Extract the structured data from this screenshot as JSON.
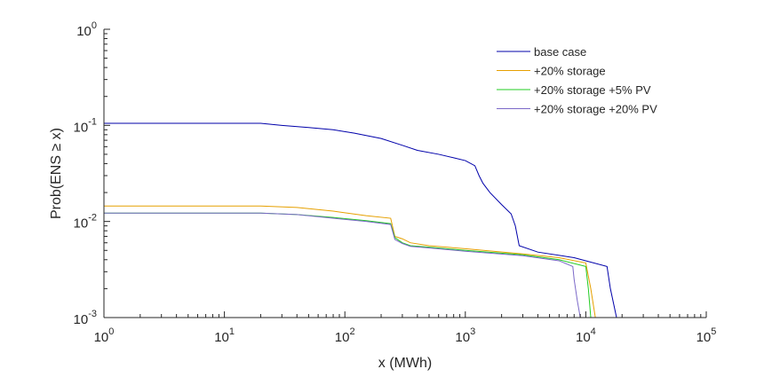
{
  "chart_data": {
    "type": "line",
    "title": "",
    "xlabel": "x (MWh)",
    "ylabel": "Prob(ENS ≥ x)",
    "x_scale": "log",
    "y_scale": "log",
    "xlim": [
      1,
      100000
    ],
    "ylim": [
      0.001,
      1
    ],
    "x_ticks": [
      {
        "value": 1,
        "base": "10",
        "exp": "0"
      },
      {
        "value": 10,
        "base": "10",
        "exp": "1"
      },
      {
        "value": 100,
        "base": "10",
        "exp": "2"
      },
      {
        "value": 1000,
        "base": "10",
        "exp": "3"
      },
      {
        "value": 10000,
        "base": "10",
        "exp": "4"
      },
      {
        "value": 100000,
        "base": "10",
        "exp": "5"
      }
    ],
    "y_ticks": [
      {
        "value": 1,
        "base": "10",
        "exp": "0"
      },
      {
        "value": 0.1,
        "base": "10",
        "exp": "-1"
      },
      {
        "value": 0.01,
        "base": "10",
        "exp": "-2"
      },
      {
        "value": 0.001,
        "base": "10",
        "exp": "-3"
      }
    ],
    "grid": false,
    "legend_position": "top-right",
    "series": [
      {
        "name": "base case",
        "color": "#0000aa",
        "points": [
          [
            1,
            0.105
          ],
          [
            20,
            0.105
          ],
          [
            30,
            0.1
          ],
          [
            50,
            0.095
          ],
          [
            80,
            0.09
          ],
          [
            120,
            0.083
          ],
          [
            200,
            0.073
          ],
          [
            300,
            0.062
          ],
          [
            400,
            0.055
          ],
          [
            600,
            0.05
          ],
          [
            800,
            0.046
          ],
          [
            1000,
            0.043
          ],
          [
            1200,
            0.038
          ],
          [
            1300,
            0.03
          ],
          [
            1400,
            0.025
          ],
          [
            1600,
            0.02
          ],
          [
            2000,
            0.015
          ],
          [
            2400,
            0.012
          ],
          [
            2600,
            0.009
          ],
          [
            2800,
            0.0056
          ],
          [
            4000,
            0.0048
          ],
          [
            8000,
            0.0042
          ],
          [
            15000,
            0.0034
          ],
          [
            16000,
            0.002
          ],
          [
            18000,
            0.001
          ]
        ]
      },
      {
        "name": "+20% storage",
        "color": "#e6a000",
        "points": [
          [
            1,
            0.0145
          ],
          [
            20,
            0.0145
          ],
          [
            40,
            0.014
          ],
          [
            80,
            0.0128
          ],
          [
            150,
            0.0115
          ],
          [
            240,
            0.0108
          ],
          [
            260,
            0.007
          ],
          [
            300,
            0.0066
          ],
          [
            350,
            0.006
          ],
          [
            500,
            0.0056
          ],
          [
            1000,
            0.0052
          ],
          [
            3000,
            0.0046
          ],
          [
            6000,
            0.0042
          ],
          [
            10000,
            0.0037
          ],
          [
            11000,
            0.002
          ],
          [
            12000,
            0.001
          ]
        ]
      },
      {
        "name": "+20% storage +5% PV",
        "color": "#22cc22",
        "points": [
          [
            1,
            0.0122
          ],
          [
            20,
            0.0122
          ],
          [
            40,
            0.0118
          ],
          [
            80,
            0.011
          ],
          [
            150,
            0.0102
          ],
          [
            240,
            0.0095
          ],
          [
            260,
            0.0068
          ],
          [
            300,
            0.006
          ],
          [
            350,
            0.0056
          ],
          [
            500,
            0.0054
          ],
          [
            1000,
            0.005
          ],
          [
            3000,
            0.0045
          ],
          [
            6000,
            0.004
          ],
          [
            10000,
            0.0034
          ],
          [
            10500,
            0.002
          ],
          [
            11000,
            0.001
          ]
        ]
      },
      {
        "name": "+20% storage +20% PV",
        "color": "#7b68c8",
        "points": [
          [
            1,
            0.0122
          ],
          [
            20,
            0.0122
          ],
          [
            40,
            0.0118
          ],
          [
            80,
            0.0108
          ],
          [
            150,
            0.01
          ],
          [
            240,
            0.0093
          ],
          [
            260,
            0.0065
          ],
          [
            300,
            0.0059
          ],
          [
            350,
            0.0055
          ],
          [
            500,
            0.0053
          ],
          [
            1000,
            0.0049
          ],
          [
            3000,
            0.0044
          ],
          [
            6000,
            0.0039
          ],
          [
            7800,
            0.0034
          ],
          [
            8000,
            0.0025
          ],
          [
            8500,
            0.0015
          ],
          [
            9000,
            0.001
          ]
        ]
      }
    ]
  }
}
